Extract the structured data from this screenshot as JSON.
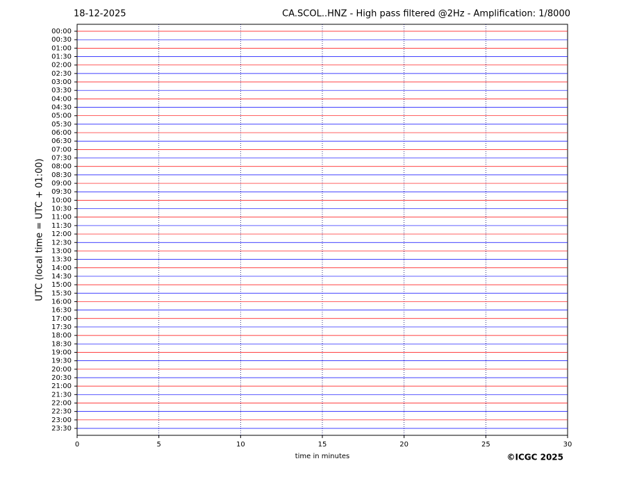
{
  "chart_data": {
    "type": "helicorder",
    "date": "18-12-2025",
    "title": "CA.SCOL..HNZ - High pass filtered @2Hz - Amplification: 1/8000",
    "ylabel": "UTC (local time = UTC + 01:00)",
    "xlabel": "time in minutes",
    "credit": "©ICGC 2025",
    "categories": [
      "00:00",
      "00:30",
      "01:00",
      "01:30",
      "02:00",
      "02:30",
      "03:00",
      "03:30",
      "04:00",
      "04:30",
      "05:00",
      "05:30",
      "06:00",
      "06:30",
      "07:00",
      "07:30",
      "08:00",
      "08:30",
      "09:00",
      "09:30",
      "10:00",
      "10:30",
      "11:00",
      "11:30",
      "12:00",
      "12:30",
      "13:00",
      "13:30",
      "14:00",
      "14:30",
      "15:00",
      "15:30",
      "16:00",
      "16:30",
      "17:00",
      "17:30",
      "18:00",
      "18:30",
      "19:00",
      "19:30",
      "20:00",
      "20:30",
      "21:00",
      "21:30",
      "22:00",
      "22:30",
      "23:00",
      "23:30"
    ],
    "colors": [
      "#ff0000",
      "#0000ff"
    ],
    "xlim": [
      0,
      30
    ],
    "xticks": [
      0,
      5,
      10,
      15,
      20,
      25,
      30
    ],
    "grid": true
  }
}
